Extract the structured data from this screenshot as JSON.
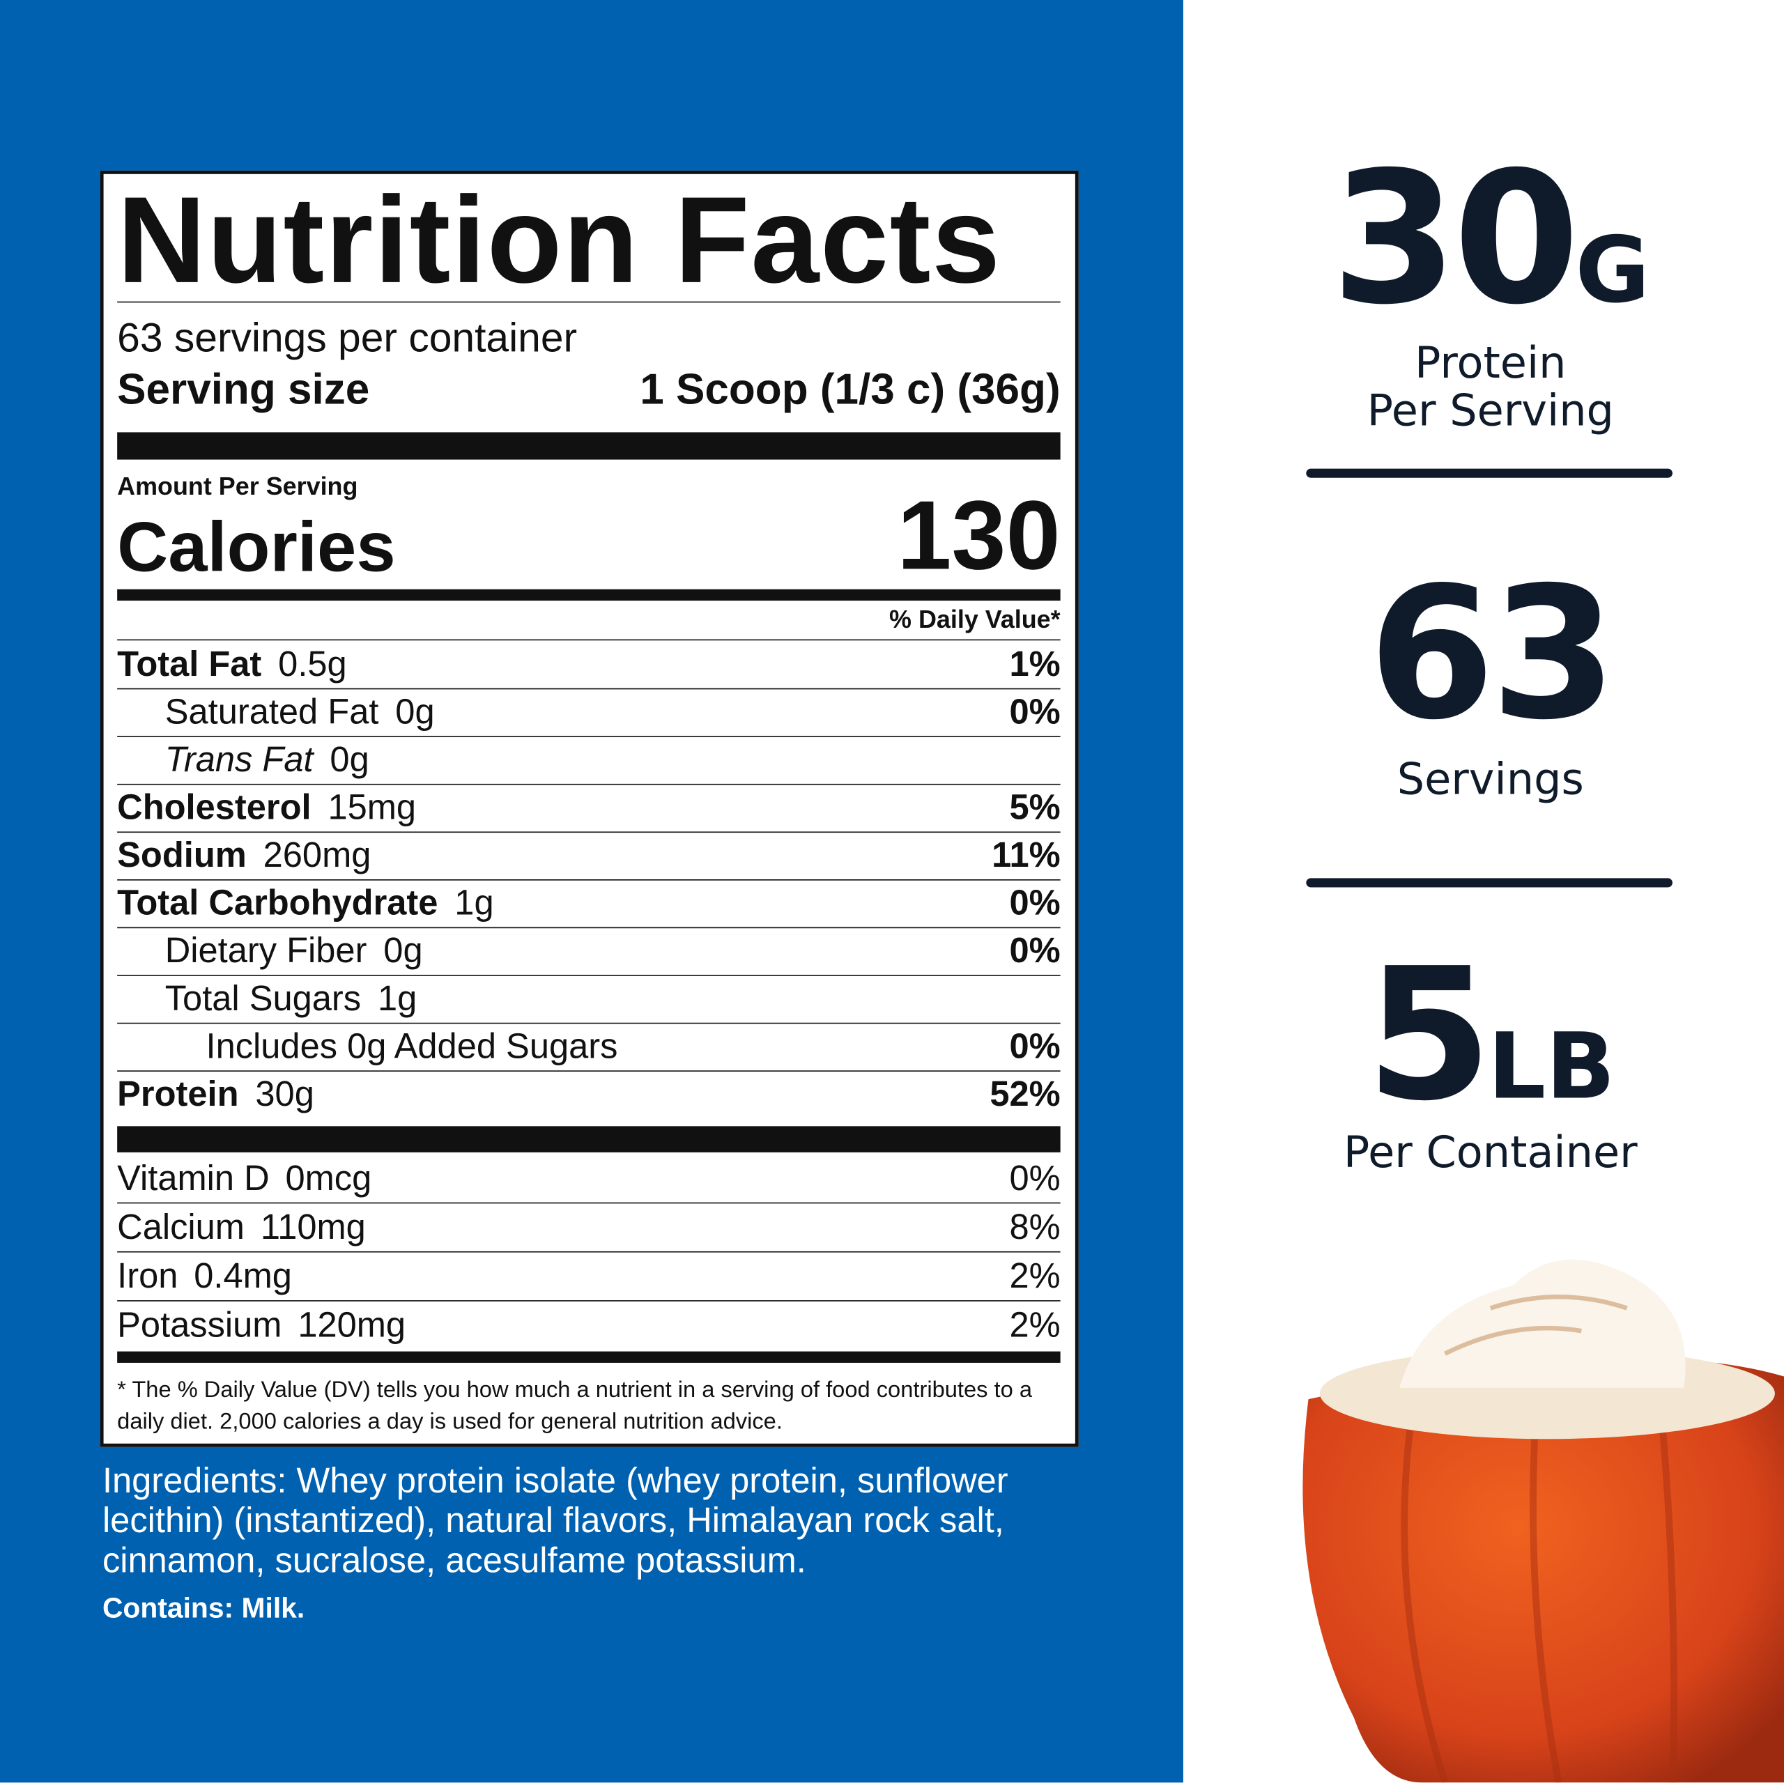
{
  "nutrition_facts": {
    "title": "Nutrition Facts",
    "servings_per_container": "63 servings per container",
    "serving_size_label": "Serving size",
    "serving_size": "1 Scoop (1/3 c) (36g)",
    "amount_per_serving": "Amount Per Serving",
    "calories_label": "Calories",
    "calories": "130",
    "daily_value_header": "% Daily Value*",
    "nutrients": [
      {
        "name": "Total Fat",
        "amount": "0.5g",
        "dv": "1%"
      },
      {
        "name": "Saturated Fat",
        "amount": "0g",
        "dv": "0%"
      },
      {
        "name": "Trans Fat",
        "amount": "0g"
      },
      {
        "name": "Cholesterol",
        "amount": "15mg",
        "dv": "5%"
      },
      {
        "name": "Sodium",
        "amount": "260mg",
        "dv": "11%"
      },
      {
        "name": "Total Carbohydrate",
        "amount": "1g",
        "dv": "0%"
      },
      {
        "name": "Dietary Fiber",
        "amount": "0g",
        "dv": "0%"
      },
      {
        "name": "Total Sugars",
        "amount": "1g"
      },
      {
        "name": "Includes 0g Added Sugars",
        "dv": "0%"
      },
      {
        "name": "Protein",
        "amount": "30g",
        "dv": "52%"
      }
    ],
    "vitamins": [
      {
        "name": "Vitamin D",
        "amount": "0mcg",
        "dv": "0%"
      },
      {
        "name": "Calcium",
        "amount": "110mg",
        "dv": "8%"
      },
      {
        "name": "Iron",
        "amount": "0.4mg",
        "dv": "2%"
      },
      {
        "name": "Potassium",
        "amount": "120mg",
        "dv": "2%"
      }
    ],
    "footnote": "* The % Daily Value (DV) tells you how much a nutrient in a serving of food contributes to a daily diet. 2,000 calories a day is used for general nutrition advice."
  },
  "ingredients": "Ingredients: Whey protein isolate (whey protein, sunflower lecithin) (instantized), natural flavors, Himalayan rock salt, cinnamon, sucralose, acesulfame potassium.",
  "contains": "Contains: Milk.",
  "stats": [
    {
      "value": "30",
      "unit": "G",
      "label": [
        "Protein",
        "Per Serving"
      ]
    },
    {
      "value": "63",
      "label": [
        "Servings"
      ]
    },
    {
      "value": "5",
      "unit": "LB",
      "label": [
        "Per Container"
      ]
    }
  ]
}
